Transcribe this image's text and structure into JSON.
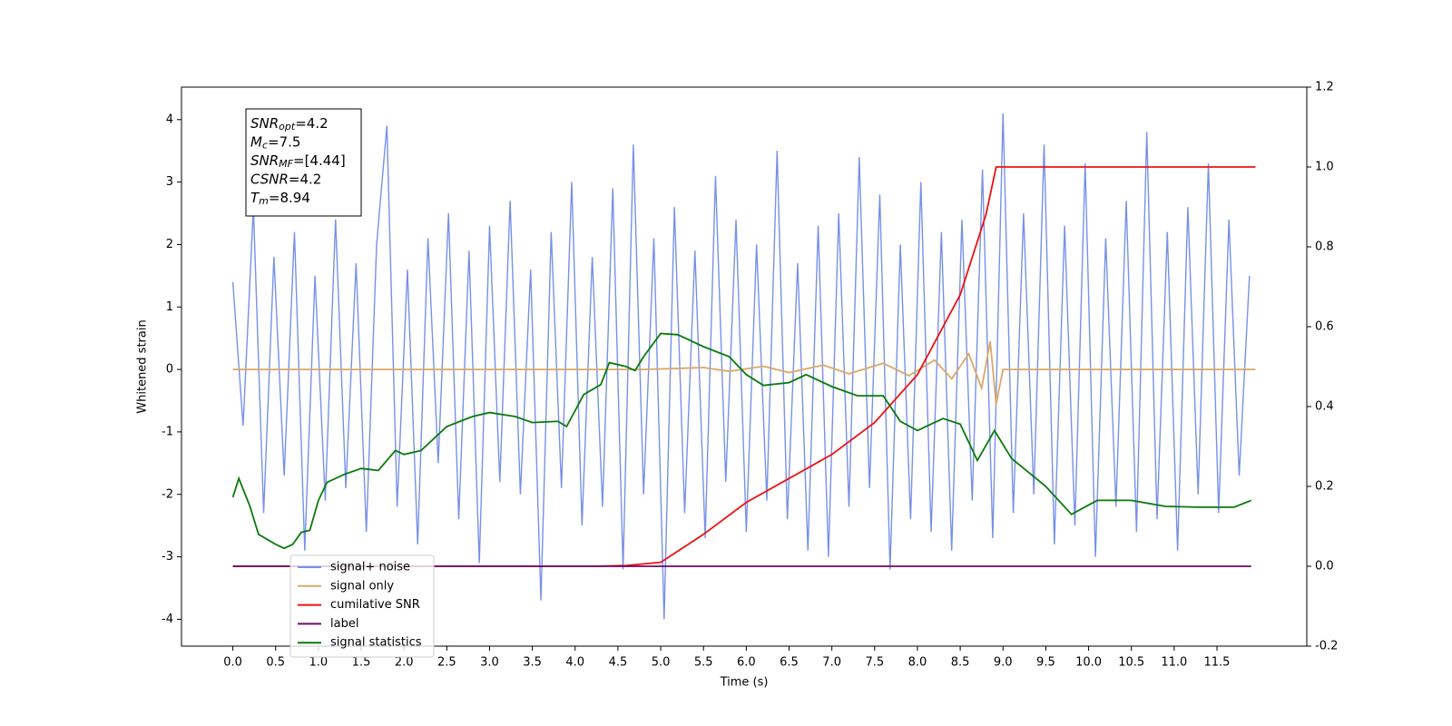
{
  "chart_data": {
    "type": "line",
    "xlabel": "Time (s)",
    "ylabel": "Whitened strain",
    "xlim": [
      -0.6,
      12.55
    ],
    "ylim": [
      -4.43,
      4.52
    ],
    "y2lim": [
      -0.2,
      1.2
    ],
    "xticks": [
      {
        "value": 0,
        "label": "0.0"
      },
      0.5,
      {
        "value": 1,
        "label": "1.0"
      },
      1.5,
      {
        "value": 2,
        "label": "2.0"
      },
      2.5,
      {
        "value": 3,
        "label": "3.0"
      },
      3.5,
      {
        "value": 4,
        "label": "4.0"
      },
      4.5,
      {
        "value": 5,
        "label": "5.0"
      },
      5.5,
      {
        "value": 6,
        "label": "6.0"
      },
      6.5,
      {
        "value": 7,
        "label": "7.0"
      },
      7.5,
      {
        "value": 8,
        "label": "8.0"
      },
      8.5,
      {
        "value": 9,
        "label": "9.0"
      },
      9.5,
      {
        "value": 10,
        "label": "10.0"
      },
      10.5,
      {
        "value": 11,
        "label": "11.0"
      },
      11.5
    ],
    "yticks": [
      -4,
      -3,
      -2,
      -1,
      0,
      1,
      2,
      3,
      4
    ],
    "y2ticks": [
      -0.2,
      {
        "value": 0,
        "label": "0.0"
      },
      0.2,
      0.4,
      0.6,
      0.8,
      {
        "value": 1,
        "label": "1.0"
      },
      1.2
    ],
    "legend": "lower left",
    "annotation": [
      {
        "main": "SNR",
        "sub": "opt",
        "rest": "=4.2"
      },
      {
        "main": "M",
        "sub": "c",
        "rest": "=7.5"
      },
      {
        "main": "SNR",
        "sub": "MF",
        "rest": "=[4.44]"
      },
      {
        "main": "CSNR",
        "sub": "",
        "rest": "=4.2"
      },
      {
        "main": "T",
        "sub": "m",
        "rest": "=8.94"
      }
    ],
    "series": [
      {
        "name": "signal+ noise",
        "color": "#7791e8",
        "axis": "y",
        "x": [
          0,
          0.12,
          0.24,
          0.36,
          0.48,
          0.6,
          0.72,
          0.84,
          0.96,
          1.08,
          1.2,
          1.32,
          1.44,
          1.56,
          1.68,
          1.8,
          1.92,
          2.04,
          2.16,
          2.28,
          2.4,
          2.52,
          2.64,
          2.76,
          2.88,
          3.0,
          3.12,
          3.24,
          3.36,
          3.48,
          3.6,
          3.72,
          3.84,
          3.96,
          4.08,
          4.2,
          4.32,
          4.44,
          4.56,
          4.68,
          4.8,
          4.92,
          5.04,
          5.16,
          5.28,
          5.4,
          5.52,
          5.64,
          5.76,
          5.88,
          6.0,
          6.12,
          6.24,
          6.36,
          6.48,
          6.6,
          6.72,
          6.84,
          6.96,
          7.08,
          7.2,
          7.32,
          7.44,
          7.56,
          7.68,
          7.8,
          7.92,
          8.04,
          8.16,
          8.28,
          8.4,
          8.52,
          8.64,
          8.76,
          8.88,
          9.0,
          9.12,
          9.24,
          9.36,
          9.48,
          9.6,
          9.72,
          9.84,
          9.96,
          10.08,
          10.2,
          10.32,
          10.44,
          10.56,
          10.68,
          10.8,
          10.92,
          11.04,
          11.16,
          11.28,
          11.4,
          11.52,
          11.64,
          11.76,
          11.88
        ],
        "values": [
          1.4,
          -0.9,
          2.6,
          -2.3,
          1.8,
          -1.7,
          2.2,
          -2.9,
          1.5,
          -2.1,
          2.4,
          -1.9,
          1.7,
          -2.6,
          2.0,
          3.9,
          -2.2,
          1.6,
          -2.8,
          2.1,
          -1.5,
          2.5,
          -2.4,
          1.9,
          -3.1,
          2.3,
          -1.8,
          2.7,
          -2.0,
          1.6,
          -3.7,
          2.2,
          -1.9,
          3.0,
          -2.5,
          1.8,
          -2.2,
          2.9,
          -3.2,
          3.6,
          -2.0,
          2.1,
          -4.0,
          2.6,
          -2.3,
          1.9,
          -2.7,
          3.1,
          -1.8,
          2.4,
          -2.6,
          2.0,
          -2.1,
          3.5,
          -2.4,
          1.7,
          -2.9,
          2.3,
          -3.0,
          2.5,
          -2.2,
          3.4,
          -1.9,
          2.8,
          -3.2,
          2.0,
          -2.4,
          3.0,
          -2.6,
          2.2,
          -2.9,
          2.4,
          -2.1,
          3.2,
          -2.7,
          4.1,
          -2.3,
          2.5,
          -2.0,
          3.6,
          -2.8,
          2.3,
          -2.5,
          3.3,
          -3.0,
          2.1,
          -2.2,
          2.7,
          -2.6,
          3.8,
          -2.4,
          2.2,
          -2.9,
          2.6,
          -2.0,
          3.3,
          -2.3,
          2.4,
          -1.7,
          1.5
        ]
      },
      {
        "name": "signal only",
        "color": "#d9a86a",
        "axis": "y",
        "x": [
          0,
          4.8,
          5.5,
          5.8,
          6.2,
          6.5,
          6.9,
          7.2,
          7.6,
          7.9,
          8.2,
          8.4,
          8.6,
          8.75,
          8.85,
          8.92,
          9.0,
          11.95
        ],
        "values": [
          0,
          0,
          0.03,
          -0.03,
          0.05,
          -0.05,
          0.07,
          -0.07,
          0.1,
          -0.1,
          0.15,
          -0.15,
          0.25,
          -0.3,
          0.45,
          -0.55,
          0,
          0
        ]
      },
      {
        "name": "cumilative SNR",
        "color": "#ee1111",
        "axis": "y2",
        "x": [
          0,
          4.2,
          4.6,
          5.0,
          5.5,
          6.0,
          6.5,
          7.0,
          7.5,
          8.0,
          8.5,
          8.8,
          8.92,
          11.95
        ],
        "values": [
          0,
          0,
          0.002,
          0.01,
          0.08,
          0.16,
          0.22,
          0.28,
          0.36,
          0.48,
          0.68,
          0.88,
          1.0,
          1.0
        ]
      },
      {
        "name": "label",
        "color": "#6a0a6a",
        "axis": "y2",
        "x": [
          0,
          11.9
        ],
        "values": [
          0,
          0
        ]
      },
      {
        "name": "signal statistics",
        "color": "#0a7a0a",
        "axis": "y2",
        "x": [
          0,
          0.07,
          0.2,
          0.3,
          0.5,
          0.6,
          0.7,
          0.8,
          0.9,
          1.0,
          1.1,
          1.3,
          1.5,
          1.7,
          1.9,
          2.0,
          2.2,
          2.5,
          2.8,
          3.0,
          3.3,
          3.5,
          3.8,
          3.9,
          4.1,
          4.3,
          4.4,
          4.6,
          4.7,
          4.8,
          5.0,
          5.2,
          5.5,
          5.8,
          6.0,
          6.2,
          6.5,
          6.7,
          7.0,
          7.3,
          7.6,
          7.8,
          8.0,
          8.3,
          8.5,
          8.7,
          8.9,
          9.1,
          9.5,
          9.8,
          10.1,
          10.5,
          10.9,
          11.3,
          11.7,
          11.9
        ],
        "values": [
          0.173,
          0.22,
          0.15,
          0.08,
          0.055,
          0.045,
          0.055,
          0.085,
          0.09,
          0.165,
          0.21,
          0.23,
          0.245,
          0.24,
          0.29,
          0.28,
          0.29,
          0.35,
          0.375,
          0.385,
          0.375,
          0.36,
          0.363,
          0.35,
          0.43,
          0.455,
          0.51,
          0.5,
          0.49,
          0.525,
          0.583,
          0.58,
          0.55,
          0.525,
          0.48,
          0.453,
          0.46,
          0.48,
          0.45,
          0.427,
          0.427,
          0.363,
          0.34,
          0.37,
          0.356,
          0.265,
          0.34,
          0.27,
          0.2,
          0.13,
          0.165,
          0.165,
          0.15,
          0.148,
          0.148,
          0.165
        ]
      }
    ]
  }
}
